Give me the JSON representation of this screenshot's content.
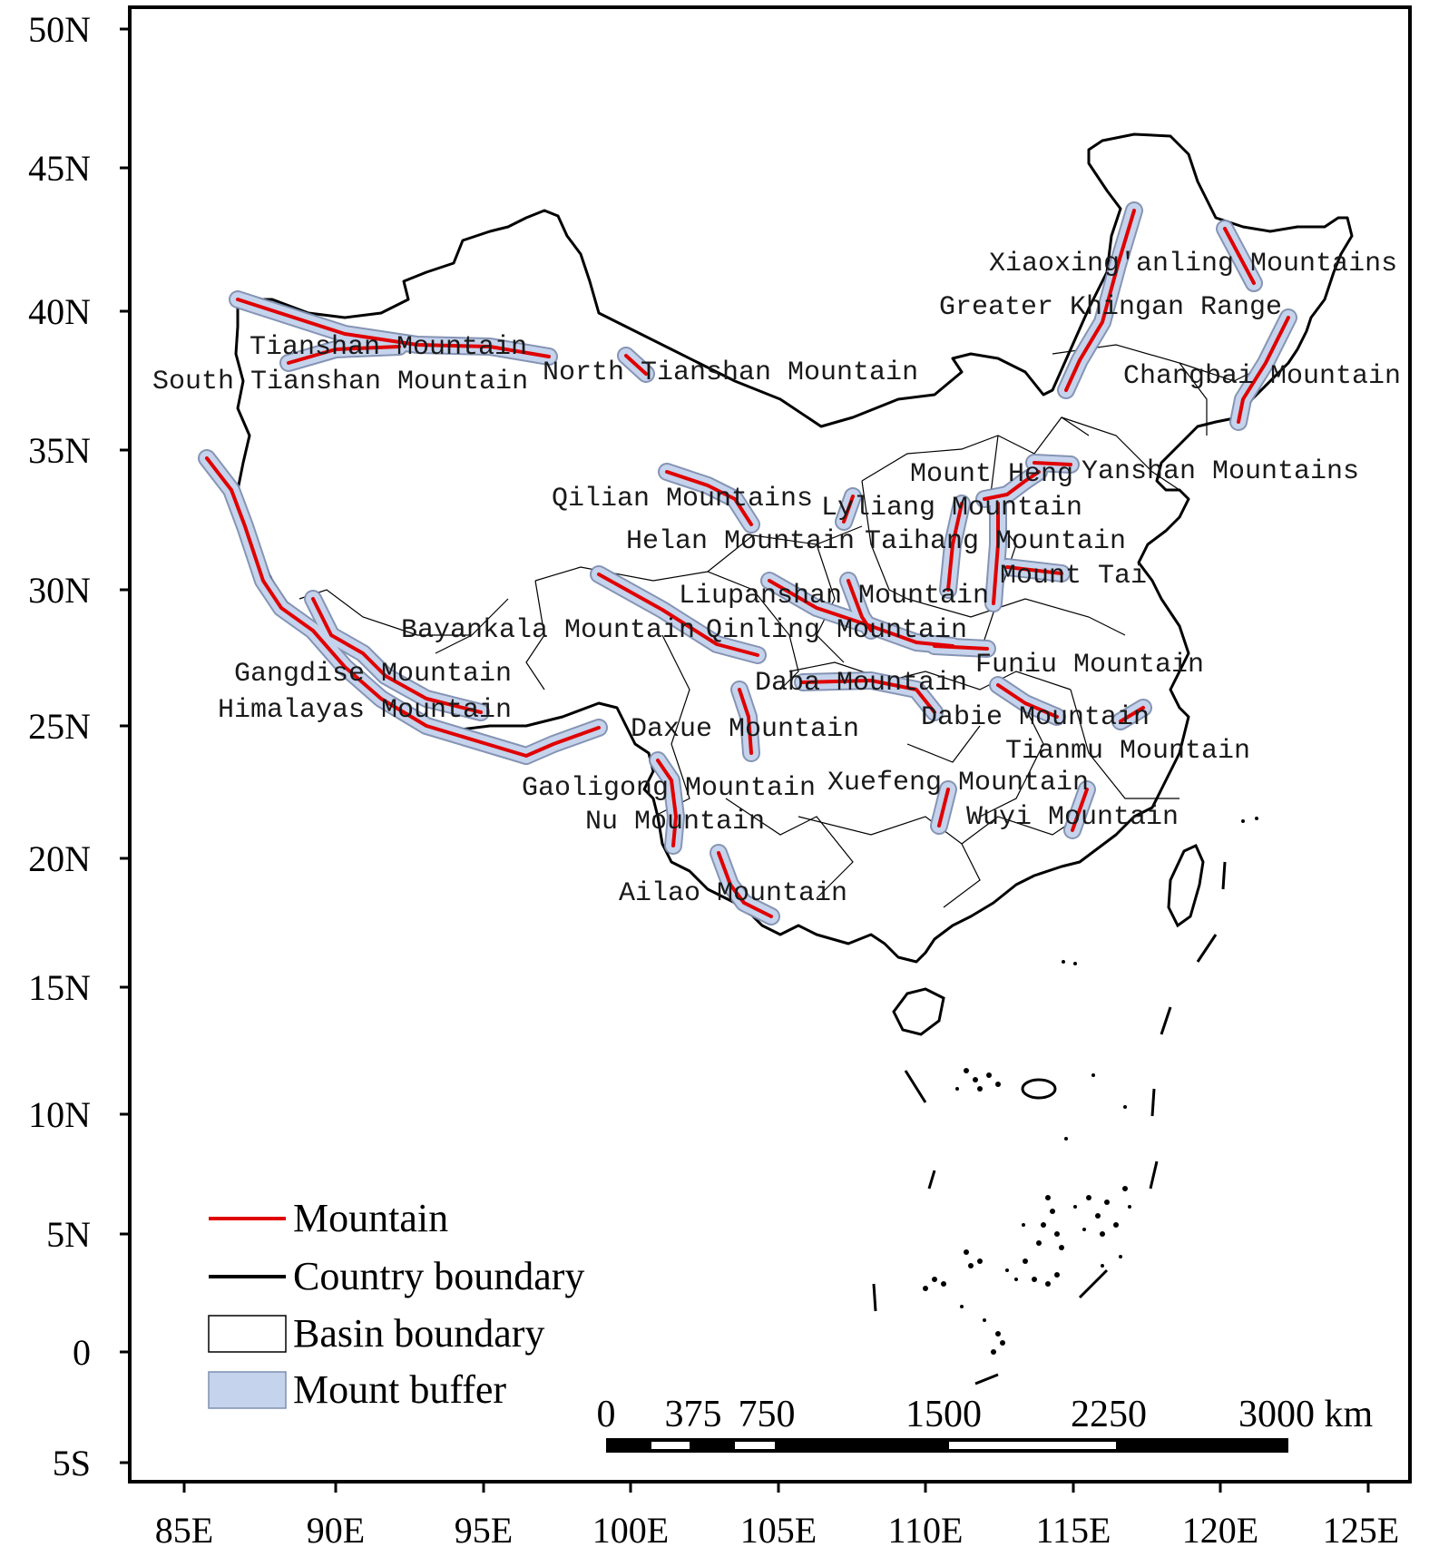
{
  "map": {
    "x_axis_labels": [
      "85E",
      "90E",
      "95E",
      "100E",
      "105E",
      "110E",
      "115E",
      "120E",
      "125E"
    ],
    "y_axis_labels": [
      "50N",
      "45N",
      "40N",
      "35N",
      "30N",
      "25N",
      "20N",
      "15N",
      "10N",
      "5N",
      "0",
      "5S"
    ],
    "mountains": [
      "Tianshan Mountain",
      "South Tianshan Mountain",
      "North Tianshan Mountain",
      "Xiaoxing'anling Mountains",
      "Greater Khingan Range",
      "Changbai Mountain",
      "Mount Heng",
      "Yanshan Mountains",
      "Qilian Mountains",
      "Lyliang Mountain",
      "Helan Mountain",
      "Taihang Mountain",
      "Mount Tai",
      "Liupanshan Mountain",
      "Bayankala Mountain",
      "Qinling Mountain",
      "Funiu Mountain",
      "Gangdise Mountain",
      "Daba Mountain",
      "Himalayas Mountain",
      "Dabie Mountain",
      "Daxue Mountain",
      "Tianmu Mountain",
      "Gaoligong Mountain",
      "Xuefeng Mountain",
      "Nu Mountain",
      "Wuyi Mountain",
      "Ailao Mountain"
    ],
    "legend": [
      {
        "label": "Mountain",
        "symbol": "red-line"
      },
      {
        "label": "Country boundary",
        "symbol": "black-line"
      },
      {
        "label": "Basin boundary",
        "symbol": "outlined-box"
      },
      {
        "label": "Mount buffer",
        "symbol": "filled-box"
      }
    ],
    "scale_bar": {
      "ticks": [
        "0",
        "375",
        "750",
        "1500",
        "2250"
      ],
      "end_label": "3000 km"
    },
    "colors": {
      "mountain_line": "#e00000",
      "buffer_fill": "#c5d3ec",
      "buffer_stroke": "#7f8fb0",
      "country_boundary": "#000000",
      "basin_boundary": "#000000"
    }
  }
}
